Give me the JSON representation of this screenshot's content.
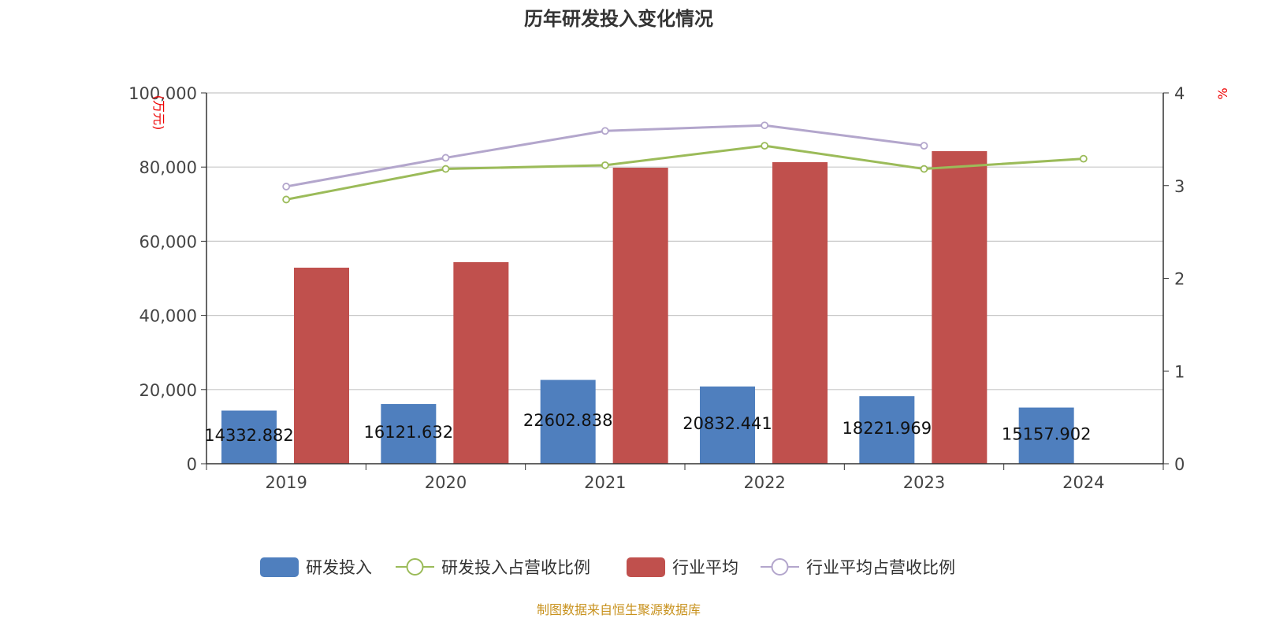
{
  "chart_data": {
    "type": "bar",
    "title": "历年研发投入变化情况",
    "categories": [
      "2019",
      "2020",
      "2021",
      "2022",
      "2023",
      "2024"
    ],
    "y_left": {
      "label": "(万元)",
      "ylim": [
        0,
        100000
      ],
      "ticks": [
        "0",
        "20,000",
        "40,000",
        "60,000",
        "80,000",
        "100,000"
      ],
      "tick_values": [
        0,
        20000,
        40000,
        60000,
        80000,
        100000
      ]
    },
    "y_right": {
      "label": "%",
      "ylim": [
        0,
        4
      ],
      "ticks": [
        "0",
        "1",
        "2",
        "3",
        "4"
      ],
      "tick_values": [
        0,
        1,
        2,
        3,
        4
      ]
    },
    "grid": true,
    "legend_position": "bottom",
    "series": [
      {
        "name": "研发投入",
        "type": "bar",
        "axis": "left",
        "color": "#4f7fbe",
        "values": [
          14332.882,
          16121.632,
          22602.838,
          20832.441,
          18221.969,
          15157.902
        ],
        "labels": [
          "14332.882",
          "16121.632",
          "22602.838",
          "20832.441",
          "18221.969",
          "15157.902"
        ]
      },
      {
        "name": "研发投入占营收比例",
        "type": "line",
        "axis": "right",
        "color": "#9bbb59",
        "values": [
          2.85,
          3.18,
          3.22,
          3.43,
          3.18,
          3.29
        ]
      },
      {
        "name": "行业平均",
        "type": "bar",
        "axis": "left",
        "color": "#c0504d",
        "values": [
          52870,
          54350,
          79830,
          81320,
          84290,
          null
        ]
      },
      {
        "name": "行业平均占营收比例",
        "type": "line",
        "axis": "right",
        "color": "#b3a6cc",
        "values": [
          2.99,
          3.3,
          3.59,
          3.65,
          3.43,
          null
        ]
      }
    ],
    "source": "制图数据来自恒生聚源数据库"
  }
}
